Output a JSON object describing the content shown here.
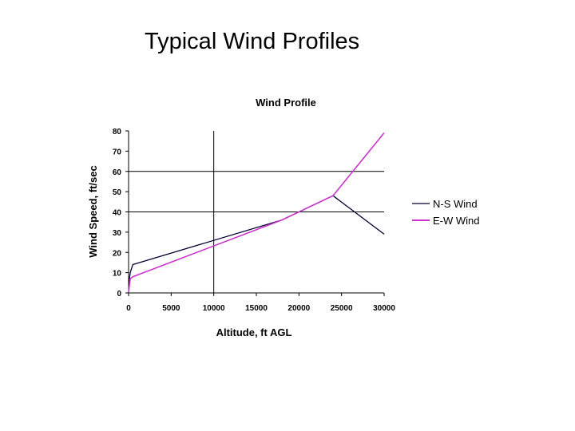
{
  "slide": {
    "title": "Typical Wind Profiles"
  },
  "chart_data": {
    "type": "line",
    "title": "Wind Profile",
    "xlabel": "Altitude, ft AGL",
    "ylabel": "Wind Speed, ft/sec",
    "xlim": [
      0,
      30000
    ],
    "ylim": [
      0,
      80
    ],
    "xticks": [
      "0",
      "5000",
      "10000",
      "15000",
      "20000",
      "25000",
      "30000"
    ],
    "yticks": [
      "0",
      "10",
      "20",
      "30",
      "40",
      "50",
      "60",
      "70",
      "80"
    ],
    "gridlines": {
      "x": [
        10000
      ],
      "y": [
        40,
        60
      ]
    },
    "legend_position": "right",
    "series": [
      {
        "name": "N-S Wind",
        "color": "#000033",
        "points": [
          [
            0,
            0
          ],
          [
            100,
            7
          ],
          [
            200,
            10
          ],
          [
            500,
            14
          ],
          [
            18000,
            36
          ],
          [
            24000,
            48
          ],
          [
            30000,
            29
          ]
        ]
      },
      {
        "name": "E-W Wind",
        "color": "#cc33cc",
        "points": [
          [
            0,
            0
          ],
          [
            100,
            4
          ],
          [
            200,
            7
          ],
          [
            500,
            8
          ],
          [
            18000,
            36
          ],
          [
            24000,
            48
          ],
          [
            30000,
            79
          ]
        ]
      }
    ]
  }
}
